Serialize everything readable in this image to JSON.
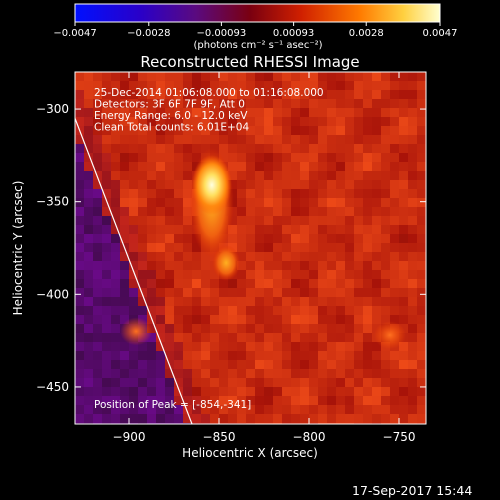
{
  "chart_data": {
    "type": "heatmap",
    "title": "Reconstructed RHESSI Image",
    "xlabel": "Heliocentric X (arcsec)",
    "ylabel": "Heliocentric Y (arcsec)",
    "xlim": [
      -930,
      -735
    ],
    "ylim": [
      -470,
      -280
    ],
    "x_ticks": [
      -900,
      -850,
      -800,
      -750
    ],
    "y_ticks": [
      -300,
      -350,
      -400,
      -450
    ],
    "x_tick_labels": [
      "−900",
      "−850",
      "−800",
      "−750"
    ],
    "y_tick_labels": [
      "−300",
      "−350",
      "−400",
      "−450"
    ],
    "colorbar": {
      "range": [
        -0.0047,
        0.0047
      ],
      "ticks": [
        -0.0047,
        -0.0028,
        -0.00093,
        0.00093,
        0.0028,
        0.0047
      ],
      "tick_labels": [
        "−0.0047",
        "−0.0028",
        "−0.00093",
        "0.00093",
        "0.0028",
        "0.0047"
      ],
      "unit_label": "(photons cm⁻² s⁻¹ asec⁻²)",
      "colors": [
        "#0000ff",
        "#400080",
        "#800000",
        "#e02000",
        "#ff8000",
        "#ffff80",
        "#ffffff"
      ]
    },
    "annotations": [
      "25-Dec-2014 01:06:08.000 to 01:16:08.000",
      "Detectors: 3F 6F 7F 9F, Att 0",
      "Energy Range: 6.0 - 12.0 keV",
      "Clean    Total counts: 6.01E+04"
    ],
    "peak_label": "Position of Peak = [-854,-341]",
    "peak": {
      "x": -854,
      "y": -341
    },
    "secondary_sources": [
      {
        "x": -846,
        "y": -383
      },
      {
        "x": -896,
        "y": -420
      },
      {
        "x": -755,
        "y": -422
      }
    ],
    "limb_line": [
      {
        "x": -930,
        "y": -305
      },
      {
        "x": -865,
        "y": -470
      }
    ],
    "background": "mottled red/orange",
    "grid": false
  },
  "footer": {
    "date": "17-Sep-2017 15:44"
  }
}
